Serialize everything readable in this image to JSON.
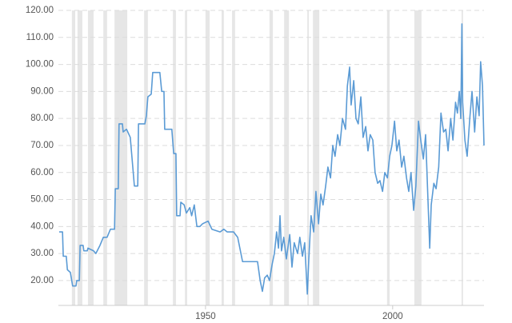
{
  "chart_data": {
    "type": "line",
    "color": "#5b9bd5",
    "shade_color": "#e6e6e6",
    "grid": true,
    "xlim": [
      1910.7,
      2024.4
    ],
    "ylim": [
      10.8,
      120
    ],
    "xticks": [
      1950,
      2000
    ],
    "yticks": [
      {
        "value": 20,
        "label": "20.00"
      },
      {
        "value": 30,
        "label": "30.00"
      },
      {
        "value": 40,
        "label": "40.00"
      },
      {
        "value": 50,
        "label": "50.00"
      },
      {
        "value": 60,
        "label": "60.00"
      },
      {
        "value": 70,
        "label": "70.00"
      },
      {
        "value": 80,
        "label": "80.00"
      },
      {
        "value": 90,
        "label": "90.00"
      },
      {
        "value": 100,
        "label": "100.00"
      },
      {
        "value": 110,
        "label": "110.00"
      },
      {
        "value": 120,
        "label": "120.00"
      }
    ],
    "shaded_periods": [
      [
        1914.3,
        1915.2
      ],
      [
        1915.8,
        1917.1
      ],
      [
        1918.6,
        1920.1
      ],
      [
        1922.7,
        1923.7
      ],
      [
        1925.7,
        1929.1
      ],
      [
        1933.6,
        1934.6
      ],
      [
        1941.3,
        1942.1
      ],
      [
        1944.5,
        1945.1
      ],
      [
        1950.0,
        1951.1
      ],
      [
        1954.3,
        1954.9
      ],
      [
        1957.1,
        1957.9
      ],
      [
        1967.1,
        1968.0
      ],
      [
        1971.0,
        1972.3
      ],
      [
        1977.2,
        1977.6
      ],
      [
        1978.7,
        1980.4
      ],
      [
        1998.5,
        1999.2
      ],
      [
        2005.8,
        2007.7
      ],
      [
        2018.4,
        2018.8
      ]
    ],
    "x": [
      1910.9,
      1911.8,
      1912.0,
      1912.8,
      1913.1,
      1913.9,
      1914.5,
      1915.4,
      1915.6,
      1916.3,
      1916.5,
      1917.3,
      1917.5,
      1918.4,
      1918.6,
      1920.1,
      1920.7,
      1921.8,
      1922.7,
      1923.7,
      1924.6,
      1925.7,
      1925.9,
      1926.7,
      1926.9,
      1927.8,
      1928.0,
      1928.9,
      1929.9,
      1931.0,
      1931.9,
      1932.1,
      1933.8,
      1934.2,
      1934.6,
      1935.5,
      1935.9,
      1937.8,
      1938.3,
      1938.9,
      1939.1,
      1941.0,
      1941.5,
      1942.1,
      1942.3,
      1943.2,
      1943.4,
      1944.3,
      1944.9,
      1945.8,
      1946.3,
      1947.0,
      1947.7,
      1948.5,
      1949.2,
      1950.7,
      1951.7,
      1953.9,
      1954.9,
      1955.8,
      1957.5,
      1958.6,
      1959.9,
      1961.3,
      1963.5,
      1963.9,
      1964.6,
      1965.2,
      1965.8,
      1966.5,
      1967.1,
      1967.8,
      1968.4,
      1969.0,
      1969.5,
      1969.9,
      1970.3,
      1970.9,
      1971.6,
      1972.5,
      1973.1,
      1973.7,
      1974.6,
      1975.2,
      1975.9,
      1976.5,
      1977.2,
      1977.6,
      1978.2,
      1978.9,
      1979.5,
      1980.2,
      1980.8,
      1981.4,
      1982.1,
      1982.7,
      1983.4,
      1984.0,
      1984.6,
      1985.3,
      1985.9,
      1986.6,
      1987.4,
      1987.9,
      1988.5,
      1988.9,
      1989.6,
      1990.2,
      1990.8,
      1991.5,
      1992.1,
      1992.8,
      1993.4,
      1994.0,
      1994.7,
      1995.3,
      1996.0,
      1996.6,
      1997.3,
      1997.9,
      1998.6,
      1999.2,
      1999.8,
      2000.5,
      2001.1,
      2001.7,
      2002.4,
      2003.0,
      2003.7,
      2004.3,
      2004.9,
      2005.6,
      2006.2,
      2006.9,
      2007.5,
      2008.2,
      2008.8,
      2009.4,
      2009.9,
      2010.3,
      2011.0,
      2011.6,
      2012.3,
      2012.9,
      2013.6,
      2014.2,
      2014.8,
      2015.5,
      2016.1,
      2016.8,
      2017.3,
      2017.8,
      2018.2,
      2018.5,
      2018.7,
      2019.3,
      2019.9,
      2020.6,
      2021.2,
      2021.9,
      2022.5,
      2023.1,
      2023.5,
      2024.0,
      2024.4
    ],
    "values": [
      38,
      38,
      29,
      29,
      24,
      23,
      18,
      18,
      20,
      20,
      33,
      33,
      31,
      31,
      32,
      31,
      30,
      33,
      36,
      36,
      39,
      39,
      54,
      54,
      78,
      78,
      75,
      76,
      73,
      55,
      55,
      78,
      78,
      81,
      88,
      89,
      97,
      97,
      90,
      90,
      76,
      76,
      67,
      67,
      44,
      44,
      49,
      48,
      45,
      47,
      44,
      48,
      40,
      40,
      41,
      42,
      39,
      38,
      39,
      38,
      38,
      36,
      27,
      27,
      27,
      27,
      20,
      16,
      21,
      22,
      20,
      26,
      30,
      38,
      32,
      44,
      31,
      36,
      28,
      37,
      25,
      34,
      30,
      36,
      29,
      34,
      15,
      28,
      44,
      38,
      53,
      41,
      52,
      48,
      55,
      62,
      58,
      70,
      66,
      74,
      70,
      80,
      76,
      92,
      99,
      85,
      94,
      80,
      78,
      88,
      73,
      77,
      68,
      74,
      72,
      60,
      56,
      57,
      53,
      60,
      58,
      66,
      70,
      79,
      68,
      72,
      62,
      66,
      58,
      53,
      60,
      46,
      55,
      79,
      72,
      65,
      74,
      51,
      32,
      48,
      56,
      54,
      62,
      82,
      75,
      76,
      68,
      80,
      72,
      86,
      82,
      90,
      80,
      115,
      86,
      72,
      66,
      80,
      90,
      75,
      88,
      81,
      101,
      92,
      70
    ]
  }
}
